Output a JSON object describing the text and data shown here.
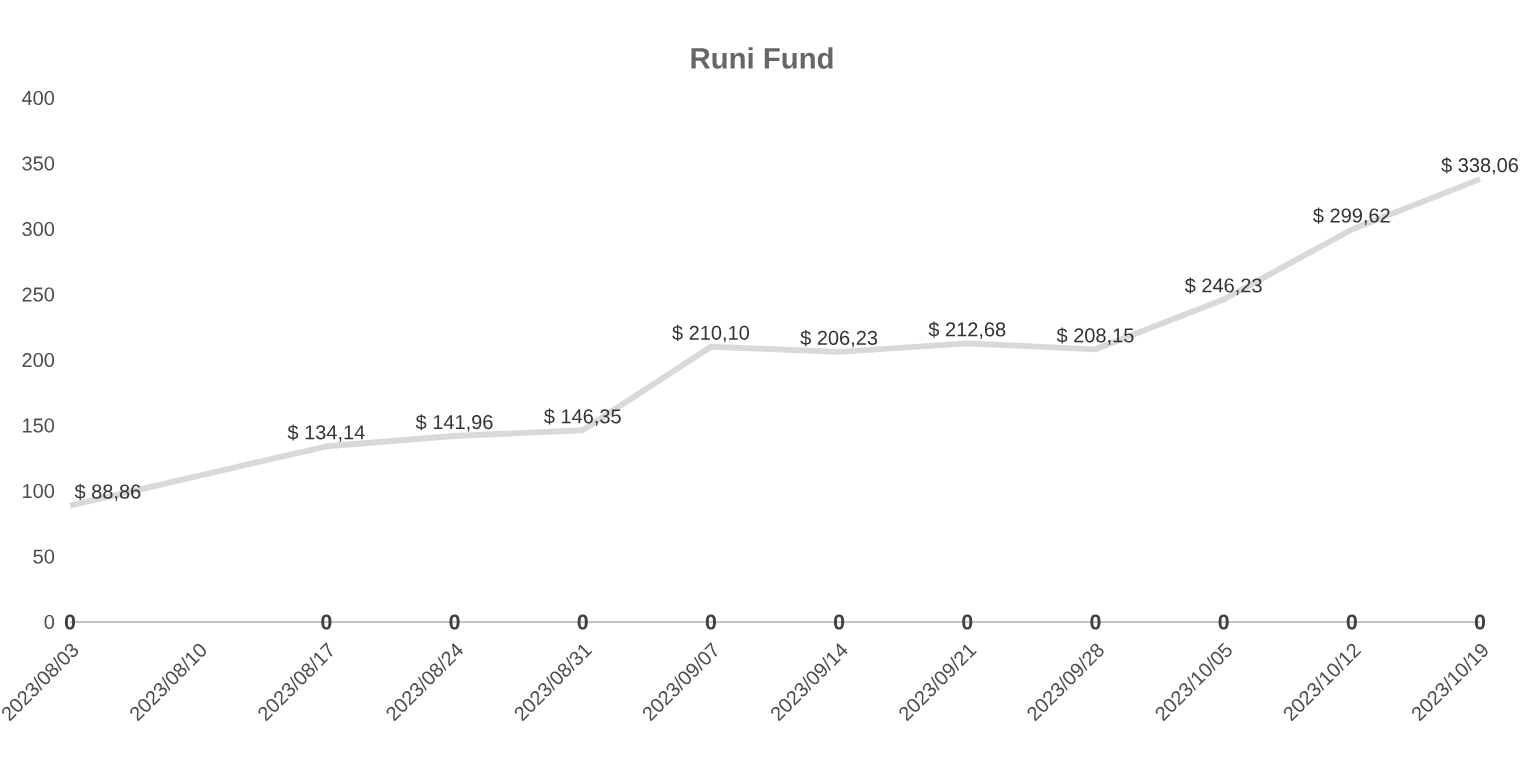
{
  "chart_data": {
    "type": "line",
    "title": "Runi Fund",
    "xlim": [
      "2023-08-03",
      "2023-10-19"
    ],
    "xticks": [
      {
        "value": "2023-08-03",
        "label": "2023/08/03"
      },
      {
        "value": "2023-08-10",
        "label": "2023/08/10"
      },
      {
        "value": "2023-08-17",
        "label": "2023/08/17"
      },
      {
        "value": "2023-08-24",
        "label": "2023/08/24"
      },
      {
        "value": "2023-08-31",
        "label": "2023/08/31"
      },
      {
        "value": "2023-09-07",
        "label": "2023/09/07"
      },
      {
        "value": "2023-09-14",
        "label": "2023/09/14"
      },
      {
        "value": "2023-09-21",
        "label": "2023/09/21"
      },
      {
        "value": "2023-09-28",
        "label": "2023/09/28"
      },
      {
        "value": "2023-10-05",
        "label": "2023/10/05"
      },
      {
        "value": "2023-10-12",
        "label": "2023/10/12"
      },
      {
        "value": "2023-10-19",
        "label": "2023/10/19"
      }
    ],
    "ylim": [
      0,
      400
    ],
    "yticks": [
      0,
      50,
      100,
      150,
      200,
      250,
      300,
      350,
      400
    ],
    "grid": false,
    "marker": "none",
    "line_style": "solid",
    "series": [
      {
        "color": "#d9d9d9",
        "x": [
          "2023-08-03",
          "2023-08-17",
          "2023-08-24",
          "2023-08-31",
          "2023-09-07",
          "2023-09-14",
          "2023-09-21",
          "2023-09-28",
          "2023-10-05",
          "2023-10-12",
          "2023-10-19"
        ],
        "values": [
          88.86,
          134.14,
          141.96,
          146.35,
          210.1,
          206.23,
          212.68,
          208.15,
          246.23,
          299.62,
          338.06
        ],
        "value_labels": [
          "$ 88,86",
          "$ 134,14",
          "$ 141,96",
          "$ 146,35",
          "$ 210,10",
          "$ 206,23",
          "$ 212,68",
          "$ 208,15",
          "$ 246,23",
          "$ 299,62",
          "$ 338,06"
        ]
      },
      {
        "color": "#bfbfbf",
        "x": [
          "2023-08-03",
          "2023-08-17",
          "2023-08-24",
          "2023-08-31",
          "2023-09-07",
          "2023-09-14",
          "2023-09-21",
          "2023-09-28",
          "2023-10-05",
          "2023-10-12",
          "2023-10-19"
        ],
        "values": [
          0,
          0,
          0,
          0,
          0,
          0,
          0,
          0,
          0,
          0,
          0
        ],
        "value_labels": [
          "0",
          "0",
          "0",
          "0",
          "0",
          "0",
          "0",
          "0",
          "0",
          "0",
          "0"
        ]
      }
    ]
  }
}
